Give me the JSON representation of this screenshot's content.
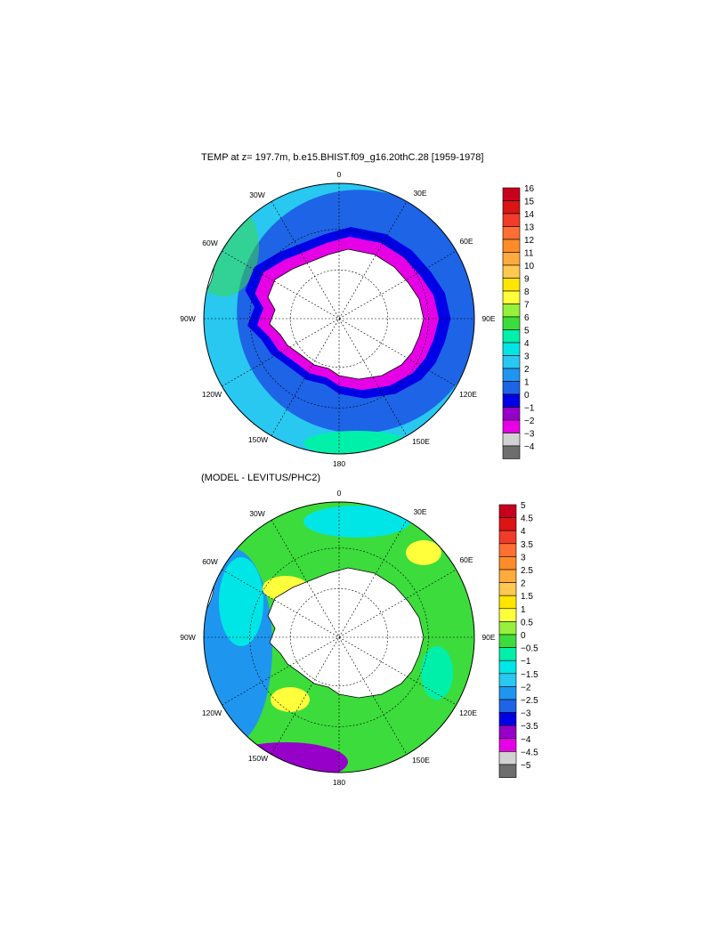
{
  "panels": [
    {
      "title": "TEMP at z= 197.7m, b.e15.BHIST.f09_g16.20thC.28 [1959-1978]",
      "longitude_labels": [
        "0",
        "30E",
        "60E",
        "90E",
        "120E",
        "150E",
        "180",
        "150W",
        "120W",
        "90W",
        "60W",
        "30W"
      ],
      "colorbar_labels": [
        "16",
        "15",
        "14",
        "13",
        "12",
        "11",
        "10",
        "9",
        "8",
        "7",
        "6",
        "5",
        "4",
        "3",
        "2",
        "1",
        "0",
        "−1",
        "−2",
        "−3",
        "−4"
      ],
      "colorbar_colors": [
        "#c8001e",
        "#dc1414",
        "#f03c28",
        "#ff6e32",
        "#ff8c28",
        "#ffaa3c",
        "#ffc850",
        "#ffe600",
        "#ffff3c",
        "#96f03c",
        "#3cdc3c",
        "#00f0aa",
        "#00e6e6",
        "#28c8f0",
        "#1e96f0",
        "#1e64e6",
        "#0000e6",
        "#9600c8",
        "#e600e6",
        "#d2d2d2",
        "#6e6e6e"
      ]
    },
    {
      "title": "(MODEL - LEVITUS/PHC2)",
      "longitude_labels": [
        "0",
        "30E",
        "60E",
        "90E",
        "120E",
        "150E",
        "180",
        "150W",
        "120W",
        "90W",
        "60W",
        "30W"
      ],
      "colorbar_labels": [
        "5",
        "4.5",
        "4",
        "3.5",
        "3",
        "2.5",
        "2",
        "1.5",
        "1",
        "0.5",
        "0",
        "−0.5",
        "−1",
        "−1.5",
        "−2",
        "−2.5",
        "−3",
        "−3.5",
        "−4",
        "−4.5",
        "−5"
      ],
      "colorbar_colors": [
        "#c8001e",
        "#dc1414",
        "#f03c28",
        "#ff6e32",
        "#ff8c28",
        "#ffaa3c",
        "#ffc850",
        "#ffe600",
        "#ffff3c",
        "#96f03c",
        "#3cdc3c",
        "#00f0aa",
        "#00e6e6",
        "#28c8f0",
        "#1e96f0",
        "#1e64e6",
        "#0000e6",
        "#9600c8",
        "#e600e6",
        "#d2d2d2",
        "#6e6e6e"
      ]
    }
  ],
  "colors": {
    "land": "#ffffff",
    "ocean_top": "#1e64e6",
    "ocean_mid": "#28c8f0",
    "ocean_bottom_field": "#3cdc3c"
  }
}
